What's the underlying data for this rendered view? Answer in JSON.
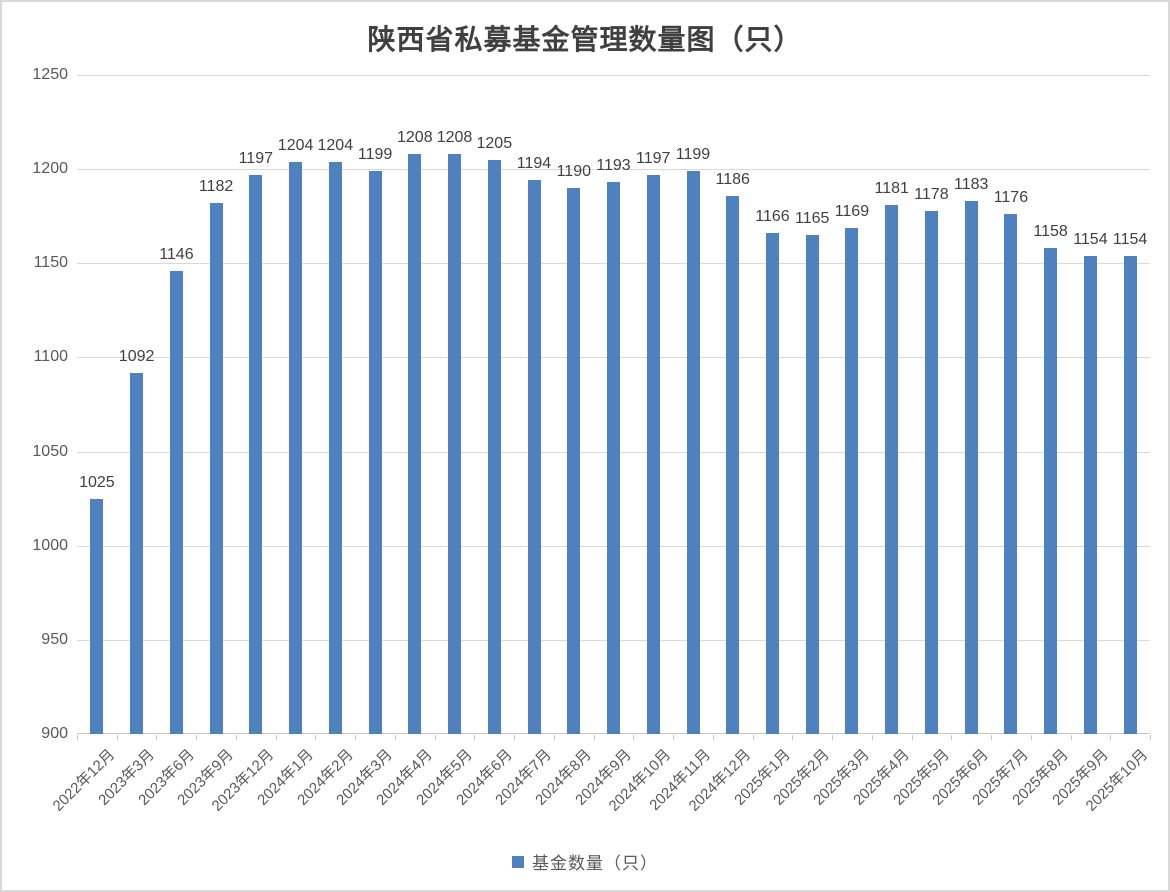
{
  "chart": {
    "title": "陕西省私募基金管理数量图（只）",
    "legend": {
      "label": "基金数量（只）",
      "swatch_color": "#4E81BD"
    }
  },
  "chart_data": {
    "type": "bar",
    "title": "陕西省私募基金管理数量图（只）",
    "series_name": "基金数量（只）",
    "categories": [
      "2022年12月",
      "2023年3月",
      "2023年6月",
      "2023年9月",
      "2023年12月",
      "2024年1月",
      "2024年2月",
      "2024年3月",
      "2024年4月",
      "2024年5月",
      "2024年6月",
      "2024年7月",
      "2024年8月",
      "2024年9月",
      "2024年10月",
      "2024年11月",
      "2024年12月",
      "2025年1月",
      "2025年2月",
      "2025年3月",
      "2025年4月",
      "2025年5月",
      "2025年6月",
      "2025年7月",
      "2025年8月",
      "2025年9月",
      "2025年10月"
    ],
    "values": [
      1025,
      1092,
      1146,
      1182,
      1197,
      1204,
      1204,
      1199,
      1208,
      1208,
      1205,
      1194,
      1190,
      1193,
      1197,
      1199,
      1186,
      1166,
      1165,
      1169,
      1181,
      1178,
      1183,
      1176,
      1158,
      1154,
      1154
    ],
    "data_labels": true,
    "ylim": [
      900,
      1250
    ],
    "y_tick_step": 50,
    "y_ticks": [
      "1250",
      "1200",
      "1150",
      "1100",
      "1050",
      "1000",
      "950",
      "900"
    ],
    "grid": true,
    "legend_position": "bottom",
    "bar_color": "#4E81BD",
    "gridline_color": "#D9D9D9",
    "axisline_color": "#C6C6C6",
    "axis_text_color": "#595959",
    "data_label_color": "#404040"
  }
}
